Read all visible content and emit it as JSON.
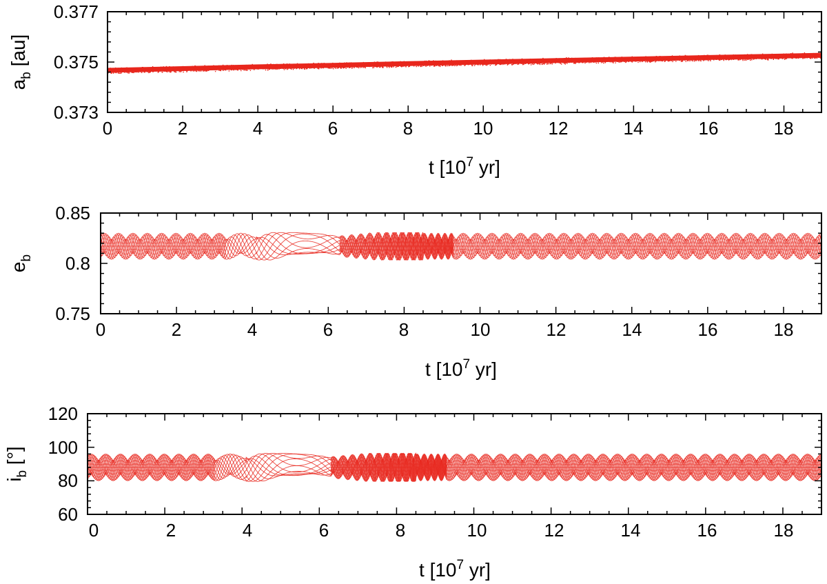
{
  "chart_data": [
    {
      "type": "scatter",
      "xlabel": "t [10^7 yr]",
      "ylabel": "a_b [au]",
      "xlim": [
        0,
        19
      ],
      "ylim": [
        0.373,
        0.377
      ],
      "xticks": [
        "0",
        "2",
        "4",
        "6",
        "8",
        "10",
        "12",
        "14",
        "16",
        "18"
      ],
      "yticks": [
        "0.373",
        "0.375",
        "0.377"
      ],
      "grid": false,
      "colors": {
        "series": "#e8261c",
        "axis": "#000000"
      },
      "series": [
        {
          "x": [
            0,
            2,
            4,
            6,
            8,
            10,
            12,
            14,
            16,
            18,
            19
          ],
          "values": [
            0.37467,
            0.37474,
            0.37481,
            0.37487,
            0.37494,
            0.375,
            0.37506,
            0.37512,
            0.37518,
            0.37524,
            0.37527
          ],
          "spread": 0.00026
        }
      ]
    },
    {
      "type": "scatter",
      "xlabel": "t [10^7 yr]",
      "ylabel": "e_b",
      "xlim": [
        0,
        19
      ],
      "ylim": [
        0.75,
        0.85
      ],
      "xticks": [
        "0",
        "2",
        "4",
        "6",
        "8",
        "10",
        "12",
        "14",
        "16",
        "18"
      ],
      "yticks": [
        "0.75",
        "0.8",
        "0.85"
      ],
      "grid": false,
      "colors": {
        "series": "#e8261c",
        "axis": "#000000"
      },
      "series": [
        {
          "x": [
            0,
            19
          ],
          "values": [
            0.817,
            0.817
          ],
          "range": [
            0.804,
            0.83
          ]
        }
      ]
    },
    {
      "type": "scatter",
      "xlabel": "t [10^7 yr]",
      "ylabel": "i_b [°]",
      "xlim": [
        0,
        19
      ],
      "ylim": [
        60,
        120
      ],
      "xticks": [
        "0",
        "2",
        "4",
        "6",
        "8",
        "10",
        "12",
        "14",
        "16",
        "18"
      ],
      "yticks": [
        "60",
        "80",
        "100",
        "120"
      ],
      "grid": false,
      "colors": {
        "series": "#e8261c",
        "axis": "#000000"
      },
      "series": [
        {
          "x": [
            0,
            19
          ],
          "values": [
            88,
            88
          ],
          "range": [
            80,
            96
          ]
        }
      ]
    }
  ]
}
